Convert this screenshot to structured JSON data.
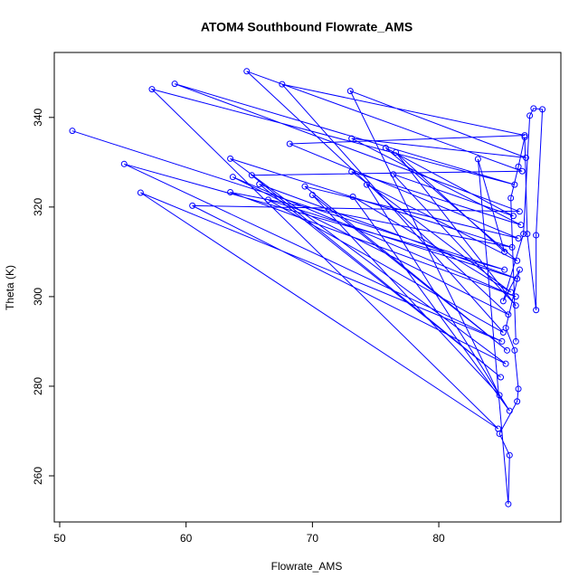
{
  "chart_data": {
    "type": "line",
    "title": "ATOM4 Southbound Flowrate_AMS",
    "x_label": "Flowrate_AMS",
    "y_label": "Theta (K)",
    "color": "#0000ff",
    "x": [
      51,
      85.2,
      55.1,
      85.0,
      56.4,
      84.7,
      57.3,
      86.0,
      59.1,
      86.4,
      60.5,
      85.3,
      63.5,
      85.8,
      63.5,
      86.1,
      63.7,
      85.5,
      64.8,
      86.6,
      65.2,
      84.9,
      65.8,
      86.2,
      66.5,
      85.1,
      67.6,
      86.8,
      68.2,
      86.3,
      69.4,
      85.4,
      70.0,
      84.8,
      73.0,
      86.9,
      73.1,
      86.5,
      73.1,
      85.7,
      73.2,
      85.6,
      74.3,
      86.2,
      75.8,
      85.9,
      76.4,
      86.1,
      76.6,
      85.2,
      83.1,
      85.5,
      85.6,
      84.8,
      86.2,
      86.3,
      86.0,
      85.3,
      86.4,
      85.1,
      86.7,
      87.2,
      87.5,
      88.2,
      87.7,
      87.7,
      87.0,
      86.8,
      86.3,
      85.7,
      86.1
    ],
    "values": [
      337,
      306,
      329.6,
      290,
      323.2,
      270.5,
      346.3,
      325,
      347.5,
      319,
      320.3,
      285,
      330.8,
      311,
      323.3,
      300,
      326.7,
      296,
      350.3,
      328,
      327.1,
      282,
      325.1,
      304,
      321.6,
      292,
      347.4,
      336,
      334.1,
      313,
      324.6,
      288,
      322.7,
      278,
      345.9,
      331,
      335.3,
      316,
      327.9,
      301,
      322.3,
      274.5,
      325,
      308,
      333.2,
      318,
      327.3,
      298,
      332.2,
      310,
      330.7,
      253.7,
      264.6,
      269.4,
      276.6,
      279.4,
      288,
      293,
      306,
      299,
      314,
      340.4,
      342,
      341.8,
      313.7,
      297,
      314,
      335.6,
      329,
      322,
      290
    ],
    "xlim": [
      49.57,
      89.66
    ],
    "ylim": [
      249.7,
      354.5
    ],
    "xticks": [
      50,
      60,
      70,
      80
    ],
    "yticks": [
      260,
      280,
      300,
      320,
      340
    ]
  }
}
